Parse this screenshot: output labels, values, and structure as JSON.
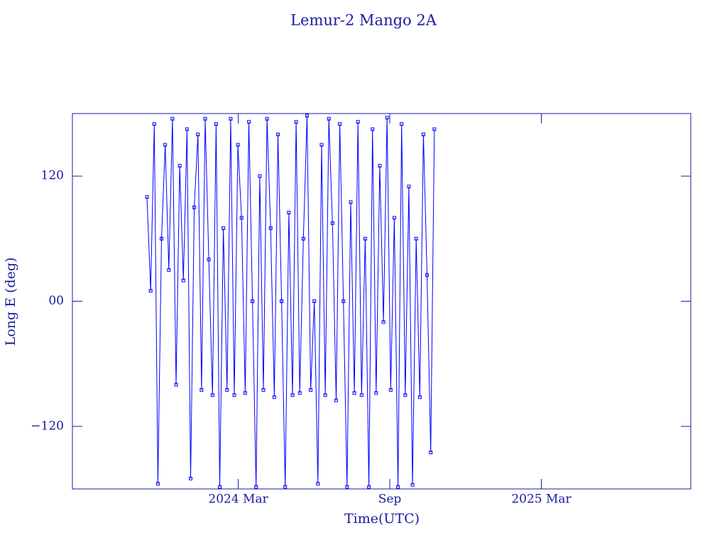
{
  "chart_data": {
    "type": "scatter-line",
    "title": "Lemur-2 Mango 2A",
    "x_label": "Time(UTC)",
    "y_label": "Long E (deg)",
    "xlim": [
      2023.62,
      2025.66
    ],
    "ylim": [
      -180,
      180
    ],
    "xticks": [
      {
        "value": 2024.167,
        "label": "2024 Mar"
      },
      {
        "value": 2024.667,
        "label": "Sep"
      },
      {
        "value": 2025.167,
        "label": "2025 Mar"
      }
    ],
    "yticks": [
      {
        "value": -120,
        "label": "−120"
      },
      {
        "value": 0,
        "label": "00"
      },
      120
    ],
    "series": [
      {
        "color": "#0000ff",
        "x": [
          2023.866,
          2023.878,
          2023.89,
          2023.902,
          2023.914,
          2023.926,
          2023.938,
          2023.95,
          2023.962,
          2023.974,
          2023.986,
          2023.998,
          2024.01,
          2024.022,
          2024.034,
          2024.046,
          2024.058,
          2024.07,
          2024.082,
          2024.094,
          2024.106,
          2024.118,
          2024.13,
          2024.142,
          2024.154,
          2024.166,
          2024.178,
          2024.19,
          2024.202,
          2024.214,
          2024.226,
          2024.238,
          2024.25,
          2024.262,
          2024.274,
          2024.286,
          2024.298,
          2024.31,
          2024.322,
          2024.334,
          2024.346,
          2024.358,
          2024.37,
          2024.382,
          2024.394,
          2024.406,
          2024.418,
          2024.43,
          2024.442,
          2024.454,
          2024.466,
          2024.478,
          2024.49,
          2024.502,
          2024.514,
          2024.526,
          2024.538,
          2024.55,
          2024.562,
          2024.574,
          2024.586,
          2024.598,
          2024.61,
          2024.622,
          2024.634,
          2024.646,
          2024.658,
          2024.67,
          2024.682,
          2024.694,
          2024.706,
          2024.718,
          2024.73,
          2024.742,
          2024.754,
          2024.766,
          2024.778,
          2024.79,
          2024.802,
          2024.814
        ],
        "values": [
          100,
          10,
          170,
          -175,
          60,
          150,
          30,
          175,
          -80,
          130,
          20,
          165,
          -170,
          90,
          160,
          -85,
          175,
          40,
          -90,
          170,
          -178,
          70,
          -85,
          175,
          -90,
          150,
          80,
          -88,
          172,
          0,
          -178,
          120,
          -85,
          175,
          70,
          -92,
          160,
          0,
          -178,
          85,
          -90,
          172,
          -88,
          60,
          178,
          -85,
          0,
          -175,
          150,
          -90,
          175,
          75,
          -95,
          170,
          0,
          -178,
          95,
          -88,
          172,
          -90,
          60,
          -178,
          165,
          -88,
          130,
          -20,
          176,
          -85,
          80,
          -178,
          170,
          -90,
          110,
          -176,
          60,
          -92,
          160,
          25,
          -145,
          165
        ]
      }
    ]
  }
}
